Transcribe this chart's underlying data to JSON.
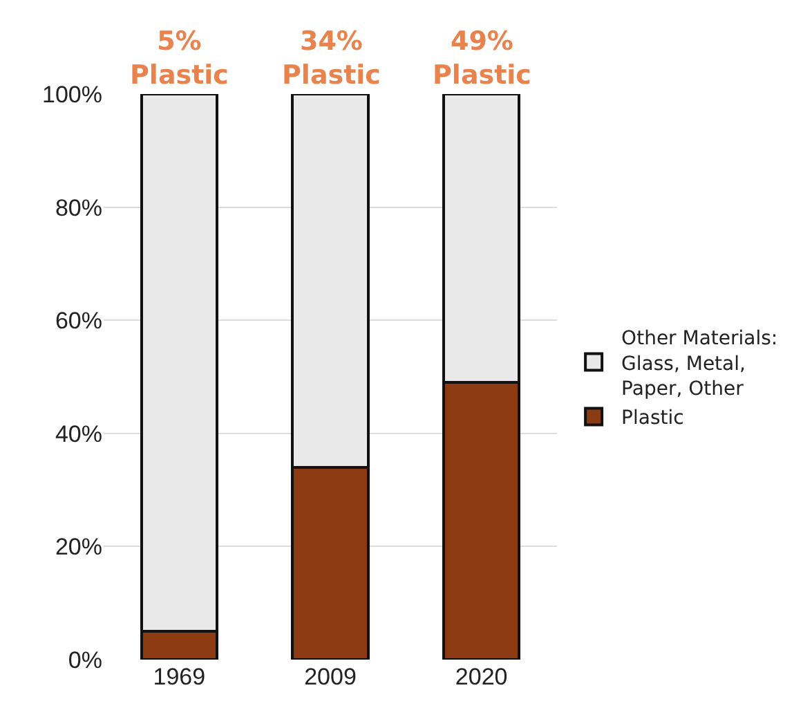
{
  "chart_data": {
    "type": "bar",
    "stacked": true,
    "categories": [
      "1969",
      "2009",
      "2020"
    ],
    "series": [
      {
        "name": "Plastic",
        "color": "#8b3a12",
        "values": [
          5,
          34,
          49
        ]
      },
      {
        "name": "Other Materials: Glass, Metal, Paper, Other",
        "color": "#e9e9e9",
        "values": [
          95,
          66,
          51
        ]
      }
    ],
    "ylim": [
      0,
      100
    ],
    "yticks": [
      {
        "value": 0,
        "label": "0%"
      },
      {
        "value": 20,
        "label": "20%"
      },
      {
        "value": 40,
        "label": "40%"
      },
      {
        "value": 60,
        "label": "60%"
      },
      {
        "value": 80,
        "label": "80%"
      },
      {
        "value": 100,
        "label": "100%"
      }
    ],
    "grid": "y",
    "legend": "right",
    "annotations": [
      {
        "text": "5% Plastic",
        "x": "1969",
        "y": 100
      },
      {
        "text": "34% Plastic",
        "x": "2009",
        "y": 100
      },
      {
        "text": "49% Plastic",
        "x": "2020",
        "y": 100
      }
    ]
  }
}
